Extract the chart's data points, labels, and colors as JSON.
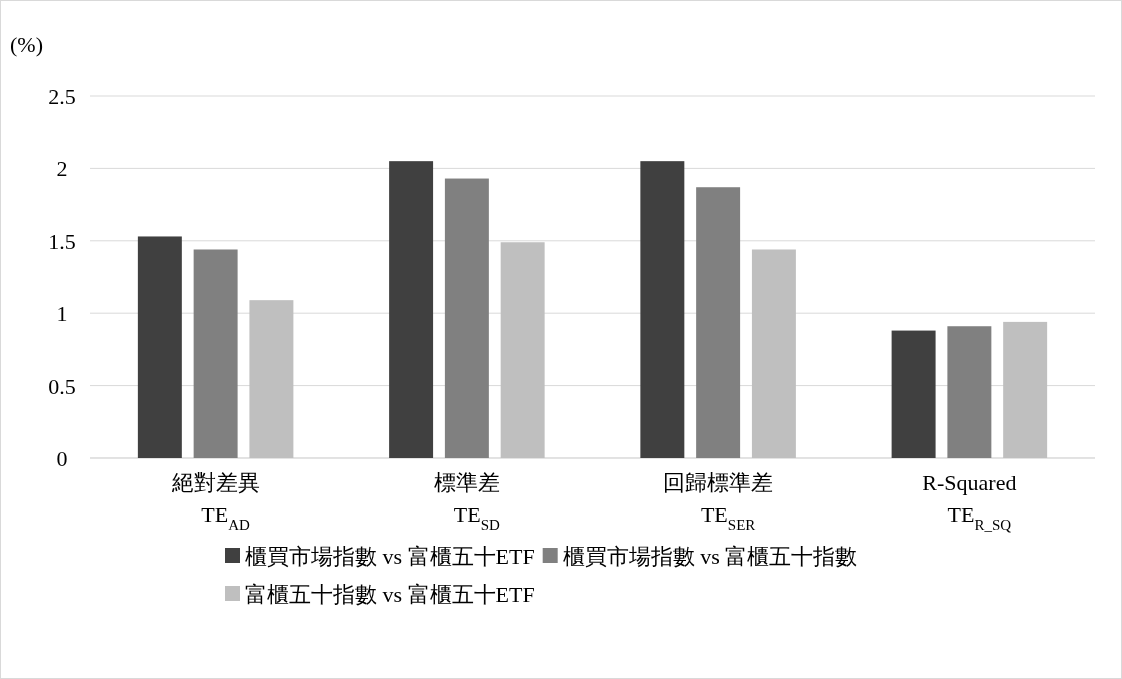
{
  "chart_data": {
    "type": "bar",
    "ylabel": "(%)",
    "categories": [
      "絕對差異\nTE$_{AD}$",
      "標準差\nTE$_{SD}$",
      "回歸標準差\nTE$_{SER}$",
      "R-Squared\nTE$_{R_SQ}$"
    ],
    "series": [
      {
        "name": "櫃買市場指數 vs 富櫃五十ETF",
        "color": "#404040",
        "values": [
          1.53,
          2.05,
          2.05,
          0.88
        ]
      },
      {
        "name": "櫃買市場指數 vs 富櫃五十指數",
        "color": "#808080",
        "values": [
          1.44,
          1.93,
          1.87,
          0.91
        ]
      },
      {
        "name": "富櫃五十指數 vs 富櫃五十ETF",
        "color": "#bfbfbf",
        "values": [
          1.09,
          1.49,
          1.44,
          0.94
        ]
      }
    ],
    "ylim": [
      0,
      2.5
    ],
    "yticks": [
      0,
      0.5,
      1,
      1.5,
      2,
      2.5
    ],
    "grid": "y",
    "legend": "bottom"
  }
}
